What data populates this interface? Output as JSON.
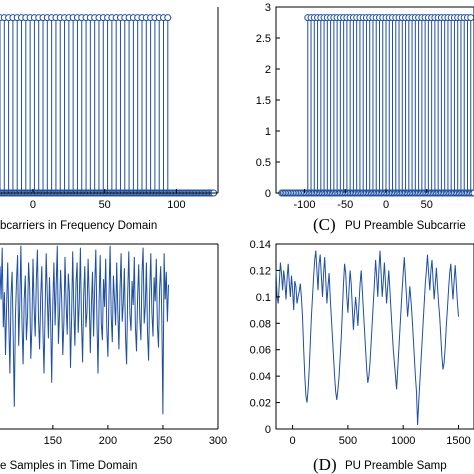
{
  "colors": {
    "series": "#1f4fa0",
    "marker_fill": "#ffffff",
    "axis": "#000000"
  },
  "chart_data": [
    {
      "id": "A",
      "type": "stem",
      "title": "",
      "caption_letter": "",
      "caption_text": "bcarriers in Frequency Domain",
      "xlabel": "",
      "ylabel": "",
      "xlim": [
        -23,
        129
      ],
      "ylim": [
        0,
        3
      ],
      "xticks": [
        0,
        50,
        100
      ],
      "yticks": [],
      "grid": false,
      "stems": {
        "from": -23,
        "to": 94,
        "step": 3,
        "value": 2.828
      },
      "zeros": {
        "from": -23,
        "to": 126,
        "step": 1,
        "value": 0
      }
    },
    {
      "id": "C",
      "type": "stem",
      "title": "",
      "caption_letter": "(C)",
      "caption_text": "PU Preamble Subcarrie",
      "xlabel": "",
      "ylabel": "",
      "xlim": [
        -135,
        108
      ],
      "ylim": [
        0,
        3
      ],
      "xticks": [
        -100,
        -50,
        0,
        50
      ],
      "yticks": [
        0,
        0.5,
        1,
        1.5,
        2,
        2.5,
        3
      ],
      "grid": false,
      "stems": {
        "from": -96,
        "to": 104,
        "step": 4,
        "value": 2.828
      },
      "zeros": {
        "from": -128,
        "to": 108,
        "step": 2,
        "value": 0
      }
    },
    {
      "id": "B",
      "type": "line",
      "title": "",
      "caption_letter": "",
      "caption_text": "e Samples in Time Domain",
      "xlabel": "",
      "ylabel": "",
      "xlim": [
        102,
        300
      ],
      "ylim": [
        0,
        1
      ],
      "xticks": [
        150,
        200,
        250,
        300
      ],
      "yticks": [],
      "grid": false,
      "x_start": 100,
      "x_step": 1,
      "values": [
        0.95,
        0.62,
        0.88,
        0.7,
        0.98,
        0.55,
        0.74,
        0.4,
        0.66,
        0.9,
        0.58,
        0.3,
        0.72,
        0.85,
        0.5,
        0.12,
        0.6,
        0.8,
        0.94,
        0.45,
        0.68,
        0.99,
        0.57,
        0.35,
        0.7,
        0.83,
        0.48,
        0.61,
        0.9,
        0.76,
        0.38,
        0.55,
        0.92,
        0.66,
        0.5,
        0.8,
        0.97,
        0.6,
        0.43,
        0.71,
        0.88,
        0.54,
        0.3,
        0.64,
        0.95,
        0.72,
        0.49,
        0.82,
        0.6,
        0.25,
        0.67,
        0.9,
        0.56,
        0.78,
        0.99,
        0.46,
        0.62,
        0.86,
        0.7,
        0.4,
        0.58,
        0.93,
        0.68,
        0.51,
        0.84,
        0.74,
        0.33,
        0.6,
        0.96,
        0.65,
        0.45,
        0.79,
        0.9,
        0.52,
        0.69,
        0.98,
        0.58,
        0.36,
        0.73,
        0.88,
        0.55,
        0.63,
        0.92,
        0.71,
        0.41,
        0.67,
        0.85,
        0.5,
        0.77,
        0.97,
        0.6,
        0.3,
        0.69,
        0.94,
        0.57,
        0.48,
        0.81,
        0.66,
        0.92,
        0.54,
        0.39,
        0.72,
        0.99,
        0.61,
        0.47,
        0.83,
        0.7,
        0.56,
        0.9,
        0.64,
        0.43,
        0.75,
        0.95,
        0.58,
        0.68,
        0.87,
        0.5,
        0.35,
        0.73,
        0.96,
        0.62,
        0.53,
        0.8,
        0.67,
        0.93,
        0.55,
        0.42,
        0.71,
        0.89,
        0.6,
        0.48,
        0.84,
        0.98,
        0.57,
        0.66,
        0.9,
        0.52,
        0.37,
        0.74,
        0.95,
        0.63,
        0.5,
        0.82,
        0.69,
        0.92,
        0.56,
        0.44,
        0.76,
        0.88,
        0.61,
        0.08,
        0.95,
        0.7,
        0.85,
        0.58,
        0.78
      ]
    },
    {
      "id": "D",
      "type": "line",
      "title": "",
      "caption_letter": "(D)",
      "caption_text": "PU Preamble Samp",
      "xlabel": "",
      "ylabel": "",
      "xlim": [
        -150,
        1640
      ],
      "ylim": [
        0,
        0.14
      ],
      "xticks": [
        0,
        500,
        1000,
        1500
      ],
      "yticks": [
        0,
        0.02,
        0.04,
        0.06,
        0.08,
        0.1,
        0.12,
        0.14
      ],
      "grid": false,
      "x_start": -150,
      "x_step": 10,
      "values": [
        0.12,
        0.1,
        0.095,
        0.11,
        0.126,
        0.118,
        0.105,
        0.12,
        0.112,
        0.098,
        0.114,
        0.125,
        0.11,
        0.1,
        0.116,
        0.105,
        0.09,
        0.112,
        0.108,
        0.095,
        0.1,
        0.104,
        0.11,
        0.1,
        0.085,
        0.06,
        0.04,
        0.025,
        0.02,
        0.03,
        0.045,
        0.065,
        0.085,
        0.1,
        0.115,
        0.128,
        0.135,
        0.12,
        0.105,
        0.125,
        0.132,
        0.115,
        0.1,
        0.118,
        0.13,
        0.112,
        0.095,
        0.108,
        0.118,
        0.1,
        0.085,
        0.07,
        0.055,
        0.04,
        0.028,
        0.022,
        0.03,
        0.04,
        0.055,
        0.07,
        0.09,
        0.11,
        0.125,
        0.118,
        0.1,
        0.088,
        0.105,
        0.12,
        0.11,
        0.092,
        0.075,
        0.088,
        0.1,
        0.09,
        0.078,
        0.095,
        0.11,
        0.12,
        0.105,
        0.09,
        0.075,
        0.06,
        0.045,
        0.035,
        0.04,
        0.05,
        0.065,
        0.08,
        0.095,
        0.11,
        0.128,
        0.115,
        0.1,
        0.12,
        0.135,
        0.118,
        0.1,
        0.112,
        0.126,
        0.11,
        0.095,
        0.108,
        0.12,
        0.105,
        0.09,
        0.075,
        0.06,
        0.05,
        0.04,
        0.03,
        0.045,
        0.06,
        0.075,
        0.09,
        0.105,
        0.118,
        0.13,
        0.115,
        0.1,
        0.085,
        0.095,
        0.108,
        0.098,
        0.085,
        0.07,
        0.055,
        0.04,
        0.028,
        0.003,
        0.02,
        0.035,
        0.05,
        0.065,
        0.08,
        0.095,
        0.11,
        0.12,
        0.132,
        0.118,
        0.105,
        0.12,
        0.128,
        0.112,
        0.098,
        0.11,
        0.122,
        0.108,
        0.095,
        0.085,
        0.07,
        0.055,
        0.045,
        0.05,
        0.062,
        0.078,
        0.092,
        0.106,
        0.118,
        0.125,
        0.11,
        0.098,
        0.112,
        0.124,
        0.11,
        0.096,
        0.085
      ]
    }
  ]
}
